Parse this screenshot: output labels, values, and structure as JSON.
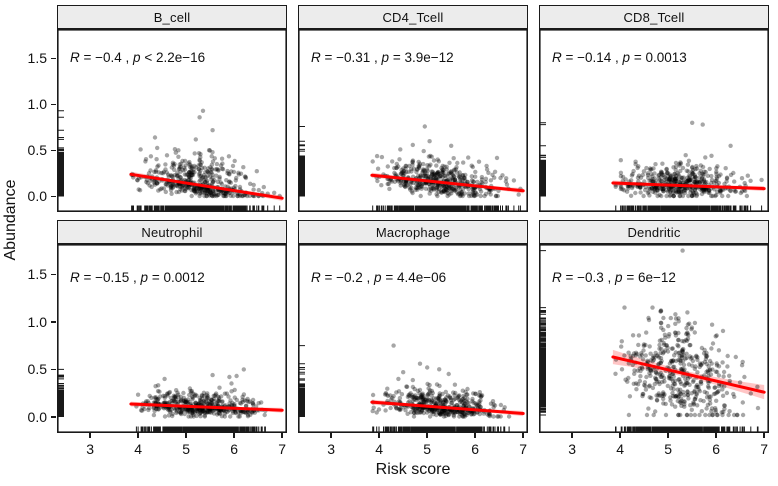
{
  "chart_data": {
    "type": "scatter",
    "title": "",
    "xlabel": "Risk score",
    "ylabel": "Abundance",
    "x_ticks": [
      "3",
      "4",
      "5",
      "6",
      "7"
    ],
    "x_tick_values": [
      3,
      4,
      5,
      6,
      7
    ],
    "y_ticks": [
      "0.0",
      "0.5",
      "1.0",
      "1.5"
    ],
    "y_tick_values": [
      0,
      0.5,
      1.0,
      1.5
    ],
    "xlim": [
      2.31,
      7.1
    ],
    "ylim": [
      -0.17,
      1.82
    ],
    "grid": "off",
    "legend": "none",
    "point_color": "#000000",
    "point_opacity": 0.35,
    "trend_line_color": "#ff0000",
    "band_color": "#ff5a5a",
    "strip_bg_color": "#ececec",
    "panel_border_color": "#1a1a1a",
    "panels": [
      {
        "label": "B_cell",
        "annotation": {
          "r_label": "R",
          "r_value": "−0.4",
          "p_label": "p",
          "p_op": "<",
          "p_value": "2.2e−16"
        },
        "n": 470,
        "x_mean": 5.25,
        "x_sd": 0.62,
        "x_range": [
          3.85,
          7.0
        ],
        "trend": {
          "x0": 3.85,
          "y0": 0.24,
          "x1": 7.0,
          "y1": -0.02
        },
        "spread_up": 0.155,
        "spread_down": 0.055,
        "y_floor": 0.004,
        "y_cap": 0.95,
        "band_mid": 0.012,
        "band_end": 0.03,
        "outliers": [
          [
            5.35,
            0.93
          ],
          [
            5.28,
            0.86
          ],
          [
            5.55,
            0.72
          ],
          [
            4.35,
            0.64
          ],
          [
            5.2,
            0.62
          ],
          [
            4.15,
            0.38
          ]
        ]
      },
      {
        "label": "CD4_Tcell",
        "annotation": {
          "r_label": "R",
          "r_value": "−0.31",
          "p_label": "p",
          "p_op": "=",
          "p_value": "3.9e−12"
        },
        "n": 470,
        "x_mean": 5.25,
        "x_sd": 0.62,
        "x_range": [
          3.85,
          7.0
        ],
        "trend": {
          "x0": 3.85,
          "y0": 0.23,
          "x1": 7.0,
          "y1": 0.06
        },
        "spread_up": 0.115,
        "spread_down": 0.07,
        "y_floor": 0.004,
        "y_cap": 0.8,
        "band_mid": 0.011,
        "band_end": 0.028,
        "outliers": [
          [
            4.95,
            0.76
          ],
          [
            5.05,
            0.6
          ],
          [
            4.7,
            0.56
          ],
          [
            5.5,
            0.55
          ]
        ]
      },
      {
        "label": "CD8_Tcell",
        "annotation": {
          "r_label": "R",
          "r_value": "−0.14",
          "p_label": "p",
          "p_op": "=",
          "p_value": "0.0013"
        },
        "n": 470,
        "x_mean": 5.25,
        "x_sd": 0.62,
        "x_range": [
          3.85,
          7.0
        ],
        "trend": {
          "x0": 3.85,
          "y0": 0.145,
          "x1": 7.0,
          "y1": 0.085
        },
        "spread_up": 0.125,
        "spread_down": 0.06,
        "y_floor": 0.004,
        "y_cap": 0.82,
        "band_mid": 0.011,
        "band_end": 0.028,
        "outliers": [
          [
            5.5,
            0.8
          ],
          [
            5.72,
            0.78
          ],
          [
            6.3,
            0.55
          ]
        ]
      },
      {
        "label": "Neutrophil",
        "annotation": {
          "r_label": "R",
          "r_value": "−0.15",
          "p_label": "p",
          "p_op": "=",
          "p_value": "0.0012"
        },
        "n": 470,
        "x_mean": 5.25,
        "x_sd": 0.62,
        "x_range": [
          3.85,
          7.0
        ],
        "trend": {
          "x0": 3.85,
          "y0": 0.135,
          "x1": 7.0,
          "y1": 0.07
        },
        "spread_up": 0.085,
        "spread_down": 0.045,
        "y_floor": 0.004,
        "y_cap": 0.52,
        "band_mid": 0.01,
        "band_end": 0.026,
        "outliers": [
          [
            6.2,
            0.5
          ],
          [
            5.55,
            0.44
          ],
          [
            4.55,
            0.4
          ],
          [
            5.9,
            0.42
          ],
          [
            6.05,
            0.43
          ]
        ]
      },
      {
        "label": "Macrophage",
        "annotation": {
          "r_label": "R",
          "r_value": "−0.2",
          "p_label": "p",
          "p_op": "=",
          "p_value": "4.4e−06"
        },
        "n": 470,
        "x_mean": 5.25,
        "x_sd": 0.62,
        "x_range": [
          3.85,
          7.0
        ],
        "trend": {
          "x0": 3.85,
          "y0": 0.155,
          "x1": 7.0,
          "y1": 0.035
        },
        "spread_up": 0.1,
        "spread_down": 0.05,
        "y_floor": 0.004,
        "y_cap": 0.76,
        "band_mid": 0.011,
        "band_end": 0.028,
        "outliers": [
          [
            4.3,
            0.75
          ],
          [
            4.85,
            0.56
          ],
          [
            5.0,
            0.52
          ],
          [
            4.5,
            0.47
          ],
          [
            4.4,
            0.4
          ]
        ]
      },
      {
        "label": "Dendritic",
        "annotation": {
          "r_label": "R",
          "r_value": "−0.3",
          "p_label": "p",
          "p_op": "=",
          "p_value": "6e−12"
        },
        "n": 470,
        "x_mean": 5.25,
        "x_sd": 0.62,
        "x_range": [
          3.85,
          7.0
        ],
        "trend": {
          "x0": 3.85,
          "y0": 0.63,
          "x1": 7.0,
          "y1": 0.26
        },
        "spread_up": 0.27,
        "spread_down": 0.24,
        "y_floor": 0.02,
        "y_cap": 1.15,
        "band_mid": 0.032,
        "band_end": 0.075,
        "outliers": [
          [
            5.3,
            1.75
          ],
          [
            4.85,
            1.12
          ],
          [
            5.15,
            1.08
          ],
          [
            5.4,
            1.1
          ],
          [
            4.6,
            1.02
          ]
        ]
      }
    ]
  }
}
